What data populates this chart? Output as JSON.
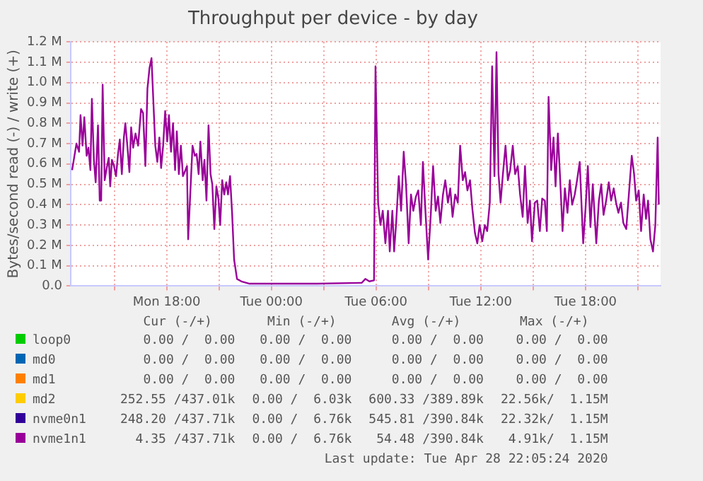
{
  "chart_data": {
    "type": "line",
    "title": "Throughput per device - by day",
    "ylabel": "Bytes/second read (-) / write (+)",
    "xlim": [
      "2020-04-27T12:30",
      "2020-04-28T22:18"
    ],
    "xticks": [
      {
        "value": "2020-04-27T15:00",
        "label": null
      },
      {
        "value": "2020-04-27T18:00",
        "label": "Mon 18:00"
      },
      {
        "value": "2020-04-27T21:00",
        "label": null
      },
      {
        "value": "2020-04-28T00:00",
        "label": "Tue 00:00"
      },
      {
        "value": "2020-04-28T03:00",
        "label": null
      },
      {
        "value": "2020-04-28T06:00",
        "label": "Tue 06:00"
      },
      {
        "value": "2020-04-28T09:00",
        "label": null
      },
      {
        "value": "2020-04-28T12:00",
        "label": "Tue 12:00"
      },
      {
        "value": "2020-04-28T15:00",
        "label": null
      },
      {
        "value": "2020-04-28T18:00",
        "label": "Tue 18:00"
      },
      {
        "value": "2020-04-28T21:00",
        "label": null
      }
    ],
    "ylim": [
      0,
      1200000
    ],
    "yticks": [
      {
        "value": 0,
        "label": "0.0"
      },
      {
        "value": 100000,
        "label": "0.1 M"
      },
      {
        "value": 200000,
        "label": "0.2 M"
      },
      {
        "value": 300000,
        "label": "0.3 M"
      },
      {
        "value": 400000,
        "label": "0.4 M"
      },
      {
        "value": 500000,
        "label": "0.5 M"
      },
      {
        "value": 600000,
        "label": "0.6 M"
      },
      {
        "value": 700000,
        "label": "0.7 M"
      },
      {
        "value": 800000,
        "label": "0.8 M"
      },
      {
        "value": 900000,
        "label": "0.9 M"
      },
      {
        "value": 1000000,
        "label": "1.0 M"
      },
      {
        "value": 1100000,
        "label": "1.1 M"
      },
      {
        "value": 1200000,
        "label": "1.2 M"
      }
    ],
    "grid": true,
    "legend": "bottom",
    "marker": "none",
    "line_style": "solid",
    "series": [
      {
        "name": "loop0",
        "color": "#00cc00"
      },
      {
        "name": "md0",
        "color": "#0066b3"
      },
      {
        "name": "md1",
        "color": "#ff8000"
      },
      {
        "name": "md2",
        "color": "#ffcc00"
      },
      {
        "name": "nvme0n1",
        "color": "#330099"
      },
      {
        "name": "nvme1n1",
        "color": "#990099",
        "x": [
          "2020-04-27T12:35",
          "2020-04-27T12:42",
          "2020-04-27T12:50",
          "2020-04-27T12:59",
          "2020-04-27T13:04",
          "2020-04-27T13:11",
          "2020-04-27T13:17",
          "2020-04-27T13:25",
          "2020-04-27T13:31",
          "2020-04-27T13:38",
          "2020-04-27T13:43",
          "2020-04-27T13:50",
          "2020-04-27T13:56",
          "2020-04-27T14:04",
          "2020-04-27T14:10",
          "2020-04-27T14:15",
          "2020-04-27T14:20",
          "2020-04-27T14:27",
          "2020-04-27T14:34",
          "2020-04-27T14:41",
          "2020-04-27T14:46",
          "2020-04-27T14:52",
          "2020-04-27T14:59",
          "2020-04-27T15:06",
          "2020-04-27T15:13",
          "2020-04-27T15:19",
          "2020-04-27T15:26",
          "2020-04-27T15:33",
          "2020-04-27T15:38",
          "2020-04-27T15:45",
          "2020-04-27T15:52",
          "2020-04-27T15:58",
          "2020-04-27T16:05",
          "2020-04-27T16:13",
          "2020-04-27T16:22",
          "2020-04-27T16:32",
          "2020-04-27T16:39",
          "2020-04-27T16:47",
          "2020-04-27T16:54",
          "2020-04-27T17:01",
          "2020-04-27T17:08",
          "2020-04-27T17:14",
          "2020-04-27T17:21",
          "2020-04-27T17:28",
          "2020-04-27T17:35",
          "2020-04-27T17:41",
          "2020-04-27T17:48",
          "2020-04-27T17:55",
          "2020-04-27T18:02",
          "2020-04-27T18:08",
          "2020-04-27T18:15",
          "2020-04-27T18:22",
          "2020-04-27T18:29",
          "2020-04-27T18:35",
          "2020-04-27T18:42",
          "2020-04-27T18:49",
          "2020-04-27T18:56",
          "2020-04-27T19:02",
          "2020-04-27T19:10",
          "2020-04-27T19:14",
          "2020-04-27T19:29",
          "2020-04-27T19:37",
          "2020-04-27T19:43",
          "2020-04-27T19:50",
          "2020-04-27T19:56",
          "2020-04-27T20:04",
          "2020-04-27T20:10",
          "2020-04-27T20:17",
          "2020-04-27T20:24",
          "2020-04-27T20:31",
          "2020-04-27T20:37",
          "2020-04-27T20:44",
          "2020-04-27T20:51",
          "2020-04-27T20:58",
          "2020-04-27T21:04",
          "2020-04-27T21:11",
          "2020-04-27T21:18",
          "2020-04-27T21:25",
          "2020-04-27T21:31",
          "2020-04-27T21:38",
          "2020-04-27T21:45",
          "2020-04-27T21:52",
          "2020-04-27T22:02",
          "2020-04-27T22:17",
          "2020-04-27T22:43",
          "2020-04-27T23:50",
          "2020-04-28T02:39",
          "2020-04-28T05:11",
          "2020-04-28T05:23",
          "2020-04-28T05:37",
          "2020-04-28T05:53",
          "2020-04-28T05:58",
          "2020-04-28T06:07",
          "2020-04-28T06:15",
          "2020-04-28T06:23",
          "2020-04-28T06:32",
          "2020-04-28T06:41",
          "2020-04-28T06:47",
          "2020-04-28T06:56",
          "2020-04-28T07:02",
          "2020-04-28T07:09",
          "2020-04-28T07:18",
          "2020-04-28T07:26",
          "2020-04-28T07:35",
          "2020-04-28T07:43",
          "2020-04-28T07:52",
          "2020-04-28T08:00",
          "2020-04-28T08:08",
          "2020-04-28T08:17",
          "2020-04-28T08:25",
          "2020-04-28T08:34",
          "2020-04-28T08:41",
          "2020-04-28T08:50",
          "2020-04-28T08:59",
          "2020-04-28T09:08",
          "2020-04-28T09:16",
          "2020-04-28T09:25",
          "2020-04-28T09:33",
          "2020-04-28T09:41",
          "2020-04-28T09:50",
          "2020-04-28T09:58",
          "2020-04-28T10:07",
          "2020-04-28T10:15",
          "2020-04-28T10:23",
          "2020-04-28T10:32",
          "2020-04-28T10:41",
          "2020-04-28T10:49",
          "2020-04-28T10:58",
          "2020-04-28T11:06",
          "2020-04-28T11:14",
          "2020-04-28T11:23",
          "2020-04-28T11:31",
          "2020-04-28T11:40",
          "2020-04-28T11:48",
          "2020-04-28T11:56",
          "2020-04-28T12:05",
          "2020-04-28T12:14",
          "2020-04-28T12:22",
          "2020-04-28T12:31",
          "2020-04-28T12:39",
          "2020-04-28T12:47",
          "2020-04-28T12:54",
          "2020-04-28T13:01",
          "2020-04-28T13:08",
          "2020-04-28T13:16",
          "2020-04-28T13:25",
          "2020-04-28T13:33",
          "2020-04-28T13:41",
          "2020-04-28T13:50",
          "2020-04-28T13:58",
          "2020-04-28T14:07",
          "2020-04-28T14:15",
          "2020-04-28T14:24",
          "2020-04-28T14:32",
          "2020-04-28T14:41",
          "2020-04-28T14:49",
          "2020-04-28T14:56",
          "2020-04-28T15:06",
          "2020-04-28T15:14",
          "2020-04-28T15:23",
          "2020-04-28T15:31",
          "2020-04-28T15:40",
          "2020-04-28T15:47",
          "2020-04-28T15:53",
          "2020-04-28T16:02",
          "2020-04-28T16:10",
          "2020-04-28T16:17",
          "2020-04-28T16:25",
          "2020-04-28T16:32",
          "2020-04-28T16:41",
          "2020-04-28T16:49",
          "2020-04-28T16:58",
          "2020-04-28T17:06",
          "2020-04-28T17:14",
          "2020-04-28T17:23",
          "2020-04-28T17:31",
          "2020-04-28T17:40",
          "2020-04-28T17:52",
          "2020-04-28T18:00",
          "2020-04-28T18:08",
          "2020-04-28T18:17",
          "2020-04-28T18:25",
          "2020-04-28T18:37",
          "2020-04-28T18:46",
          "2020-04-28T18:54",
          "2020-04-28T19:02",
          "2020-04-28T19:11",
          "2020-04-28T19:20",
          "2020-04-28T19:28",
          "2020-04-28T19:37",
          "2020-04-28T19:45",
          "2020-04-28T19:53",
          "2020-04-28T20:02",
          "2020-04-28T20:10",
          "2020-04-28T20:20",
          "2020-04-28T20:29",
          "2020-04-28T20:39",
          "2020-04-28T20:47",
          "2020-04-28T20:54",
          "2020-04-28T21:03",
          "2020-04-28T21:11",
          "2020-04-28T21:20",
          "2020-04-28T21:28",
          "2020-04-28T21:35",
          "2020-04-28T21:43",
          "2020-04-28T21:52",
          "2020-04-28T22:00",
          "2020-04-28T22:08",
          "2020-04-28T22:12"
        ],
        "values": [
          570000,
          630000,
          700000,
          660000,
          840000,
          690000,
          830000,
          640000,
          680000,
          570000,
          920000,
          620000,
          510000,
          790000,
          420000,
          420000,
          990000,
          520000,
          580000,
          630000,
          490000,
          620000,
          590000,
          540000,
          650000,
          720000,
          550000,
          730000,
          800000,
          690000,
          560000,
          780000,
          680000,
          750000,
          690000,
          870000,
          850000,
          590000,
          970000,
          1070000,
          1120000,
          920000,
          690000,
          610000,
          730000,
          580000,
          690000,
          860000,
          710000,
          840000,
          660000,
          800000,
          570000,
          760000,
          550000,
          690000,
          540000,
          560000,
          590000,
          230000,
          690000,
          640000,
          650000,
          550000,
          710000,
          520000,
          620000,
          420000,
          790000,
          550000,
          500000,
          280000,
          490000,
          430000,
          300000,
          520000,
          450000,
          510000,
          450000,
          540000,
          360000,
          130000,
          35000,
          23000,
          12000,
          12000,
          12000,
          16000,
          35000,
          23000,
          28000,
          1080000,
          410000,
          300000,
          370000,
          210000,
          370000,
          170000,
          370000,
          170000,
          310000,
          540000,
          370000,
          660000,
          500000,
          210000,
          450000,
          370000,
          440000,
          470000,
          300000,
          610000,
          360000,
          130000,
          350000,
          590000,
          370000,
          440000,
          310000,
          450000,
          520000,
          410000,
          480000,
          340000,
          450000,
          410000,
          690000,
          520000,
          560000,
          470000,
          520000,
          380000,
          260000,
          210000,
          300000,
          220000,
          300000,
          270000,
          410000,
          1080000,
          540000,
          1150000,
          550000,
          410000,
          550000,
          690000,
          520000,
          570000,
          690000,
          550000,
          590000,
          450000,
          340000,
          590000,
          310000,
          420000,
          220000,
          410000,
          420000,
          270000,
          430000,
          420000,
          270000,
          930000,
          570000,
          730000,
          490000,
          750000,
          550000,
          270000,
          480000,
          360000,
          520000,
          400000,
          450000,
          520000,
          610000,
          210000,
          380000,
          590000,
          290000,
          500000,
          210000,
          420000,
          500000,
          350000,
          420000,
          510000,
          420000,
          480000,
          410000,
          360000,
          410000,
          310000,
          280000,
          450000,
          640000,
          550000,
          420000,
          470000,
          270000,
          450000,
          330000,
          420000,
          230000,
          170000,
          300000,
          730000,
          400000
        ]
      }
    ],
    "annotations": [
      "Cur (-/+)",
      "Min (-/+)",
      "Avg (-/+)",
      "Max (-/+)",
      "0.00 /  0.00",
      "0.00 /  0.00",
      "0.00 /  0.00",
      "0.00 /  0.00",
      "0.00 /  0.00",
      "0.00 /  0.00",
      "0.00 /  0.00",
      "0.00 /  0.00",
      "0.00 /  0.00",
      "0.00 /  0.00",
      "0.00 /  0.00",
      "0.00 /  0.00",
      "252.55 /437.01k",
      "0.00 /  6.03k",
      "600.33 /389.89k",
      "22.56k/  1.15M",
      "248.20 /437.71k",
      "0.00 /  6.76k",
      "545.81 /390.84k",
      "22.32k/  1.15M",
      "4.35 /437.71k",
      "0.00 /  6.76k",
      "54.48 /390.84k",
      "4.91k/  1.15M",
      "Last update: Tue Apr 28 22:05:24 2020"
    ]
  }
}
